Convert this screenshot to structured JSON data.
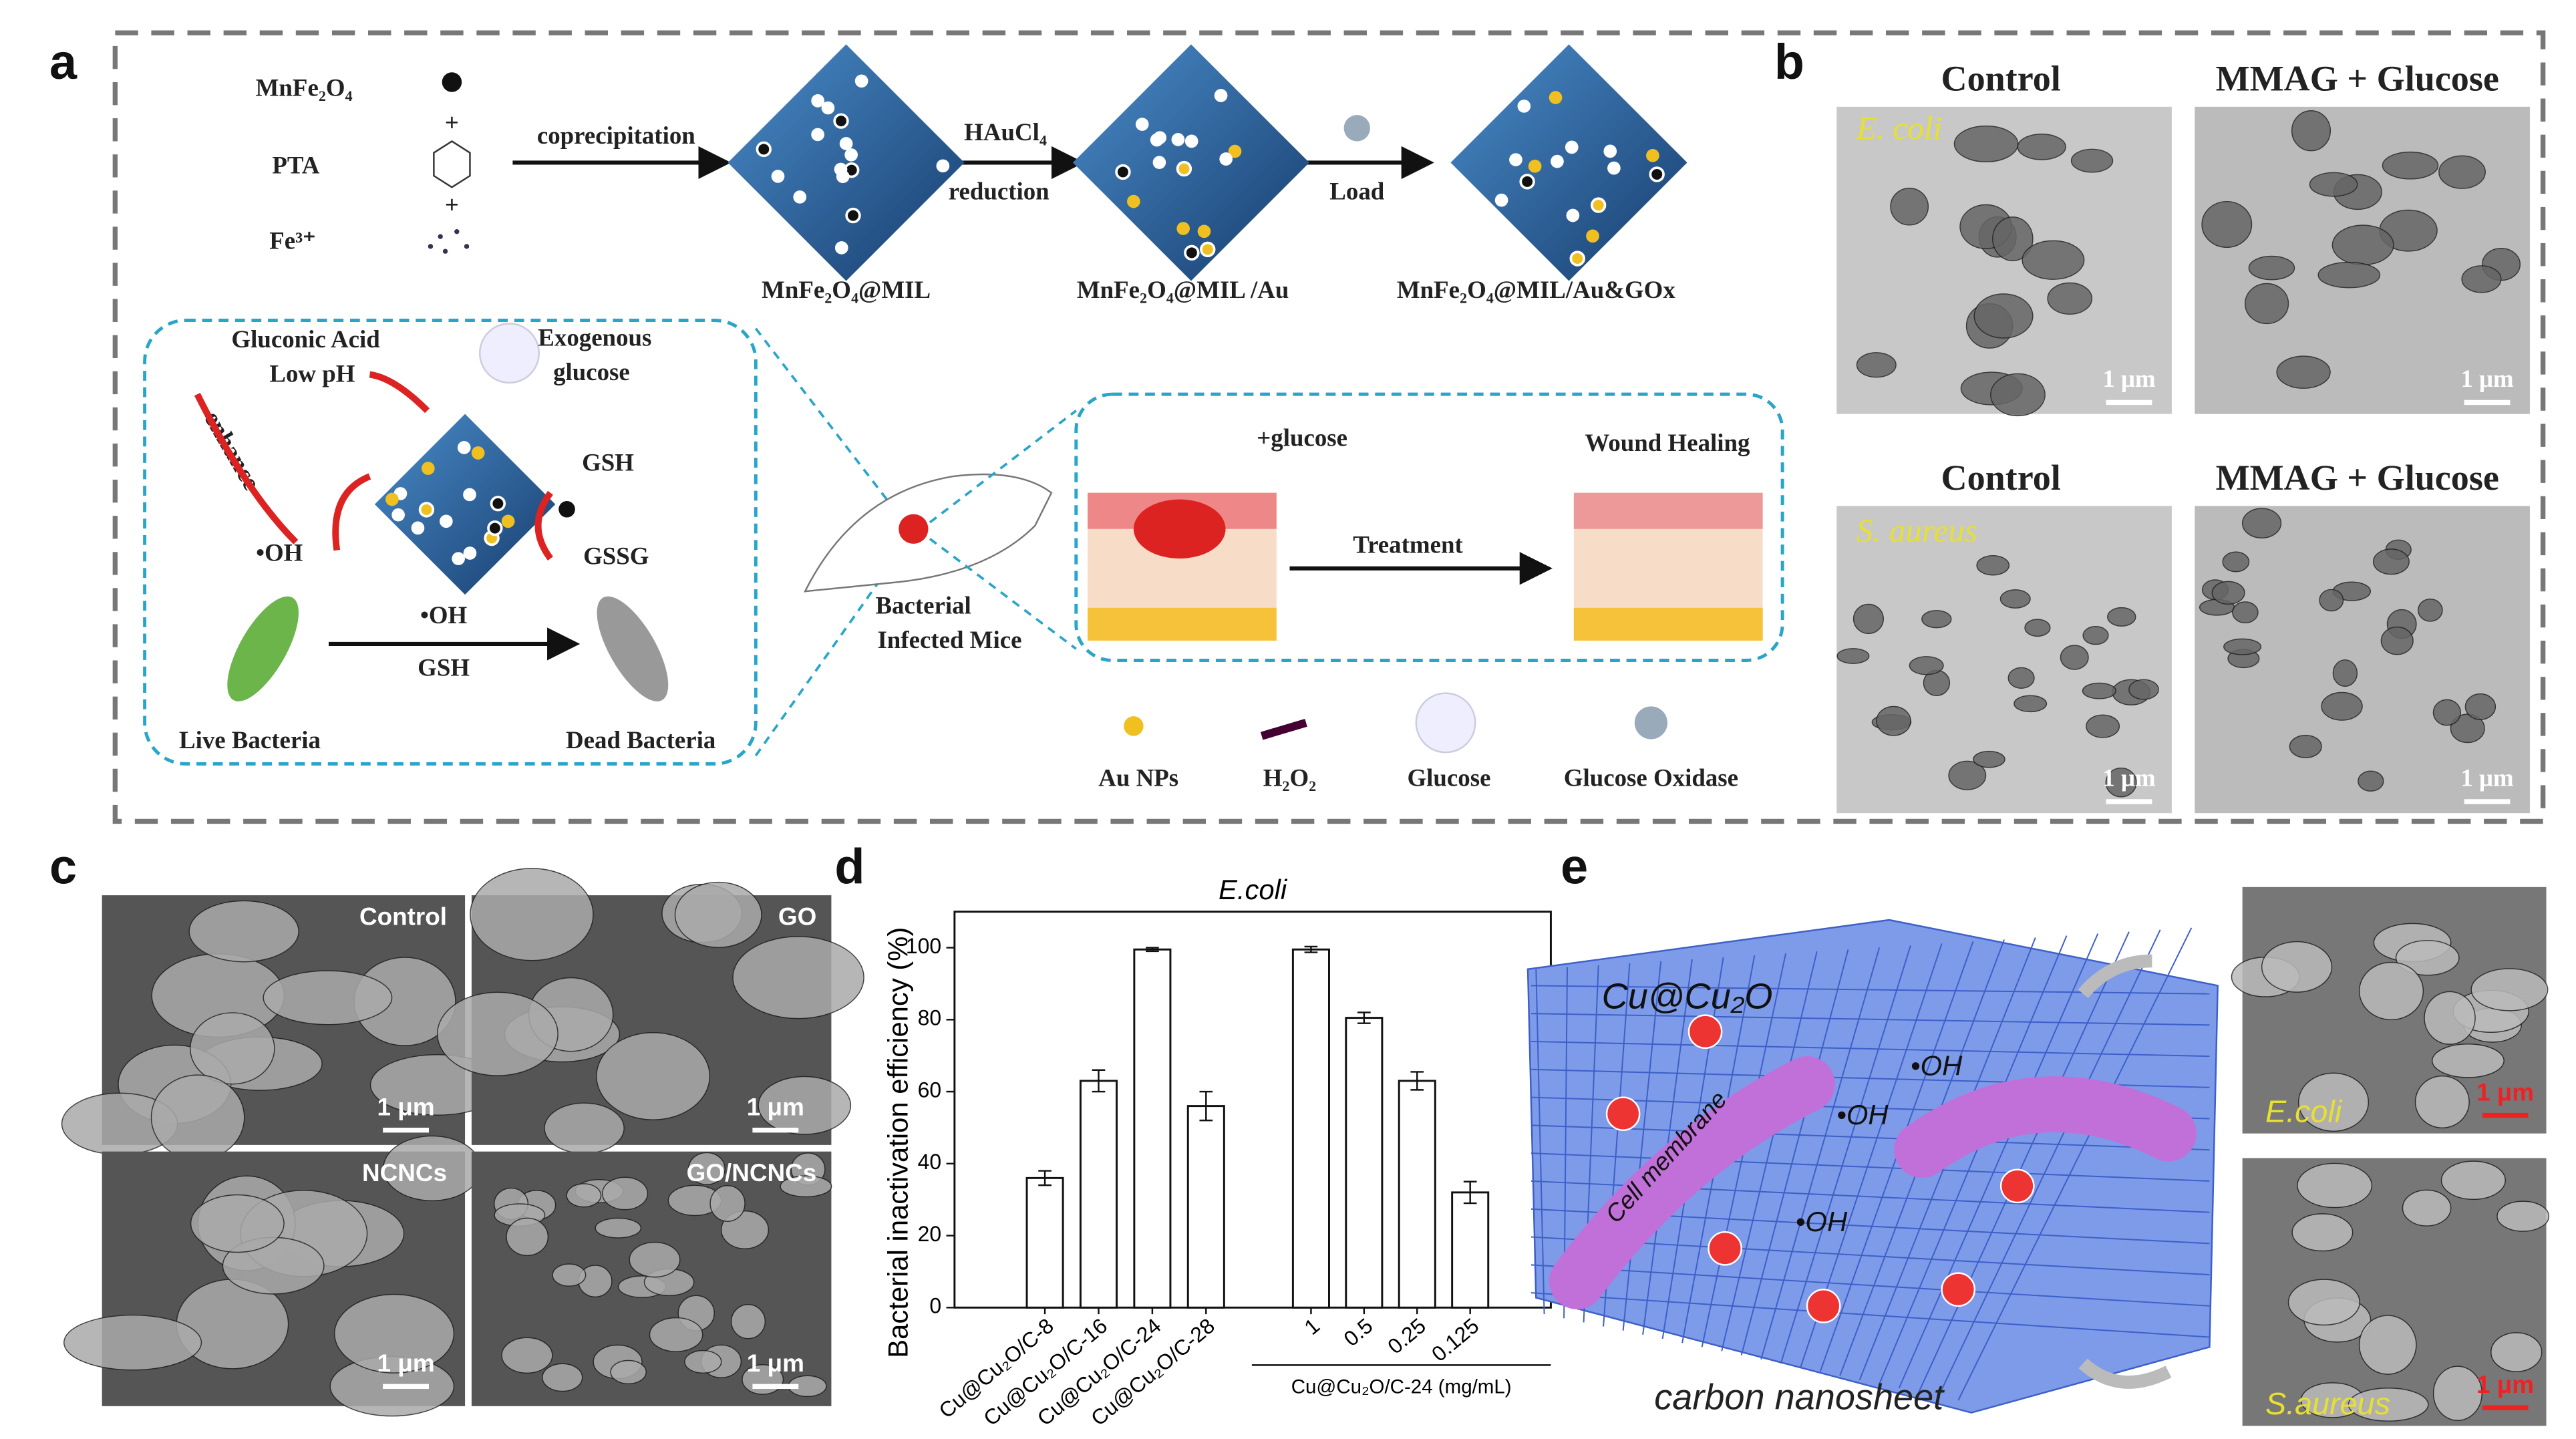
{
  "panel_labels": [
    "a",
    "b",
    "c",
    "d",
    "e"
  ],
  "panel_a": {
    "reagents": [
      "MnFe₂O₄",
      "PTA",
      "Fe³⁺"
    ],
    "steps": [
      "coprecipitation",
      "HAuCl₄",
      "reduction",
      "Load"
    ],
    "products": [
      "MnFe₂O₄@MIL",
      "MnFe₂O₄@MIL /Au",
      "MnFe₂O₄@MIL/Au&GOx"
    ],
    "mechanism": {
      "gluconic": [
        "Gluconic Acid",
        "Low pH"
      ],
      "exogenous": [
        "Exogenous",
        "glucose"
      ],
      "enhance": "enhance",
      "gsh_top": "GSH",
      "oh_left": "•OH",
      "gssg": "GSSG",
      "oh_mid": "•OH",
      "gsh_mid": "GSH",
      "live": "Live Bacteria",
      "dead": "Dead Bacteria"
    },
    "mice": [
      "Bacterial",
      "Infected Mice"
    ],
    "treatment": {
      "glucose": "+glucose",
      "healing": "Wound Healing",
      "arrow": "Treatment"
    },
    "legend": [
      "Au NPs",
      "H₂O₂",
      "Glucose",
      "Glucose Oxidase"
    ]
  },
  "panel_b": {
    "headers": [
      "Control",
      "MMAG + Glucose",
      "Control",
      "MMAG + Glucose"
    ],
    "species": [
      "E. coli",
      "S. aureus"
    ],
    "scale_bars": [
      "1 μm",
      "1 μm",
      "1 μm",
      "1 μm"
    ]
  },
  "panel_c": {
    "labels": [
      "Control",
      "GO",
      "NCNCs",
      "GO/NCNCs"
    ],
    "scale_bars": [
      "1 μm",
      "1 μm",
      "1 μm",
      "1 μm"
    ]
  },
  "chart_data": {
    "type": "bar",
    "title": "E.coli",
    "y_label": "Bacterial inactivation efficiency (%)",
    "categories": [
      "Cu@Cu₂O/C-8",
      "Cu@Cu₂O/C-16",
      "Cu@Cu₂O/C-24",
      "Cu@Cu₂O/C-28",
      "1",
      "0.5",
      "0.25",
      "0.125"
    ],
    "x_group_label": "Cu@Cu₂O/C-24 (mg/mL)",
    "values": [
      36,
      63,
      99.5,
      56,
      99.5,
      80.5,
      63,
      32
    ],
    "errors": [
      2,
      3,
      0.5,
      4,
      0.8,
      1.5,
      2.5,
      3
    ],
    "color": "#ffffff",
    "ylim": [
      0,
      110
    ],
    "yticks": [
      0,
      20,
      40,
      60,
      80,
      100
    ],
    "grid": false
  },
  "panel_e": {
    "particle": "Cu@Cu₂O",
    "radicals": [
      "•OH",
      "•OH",
      "•OH"
    ],
    "membrane": "Cell membrane",
    "sheet": "carbon nanosheet",
    "species": [
      "E.coli",
      "S.aureus"
    ],
    "scale_bars": [
      "1 μm",
      "1 μm"
    ]
  }
}
